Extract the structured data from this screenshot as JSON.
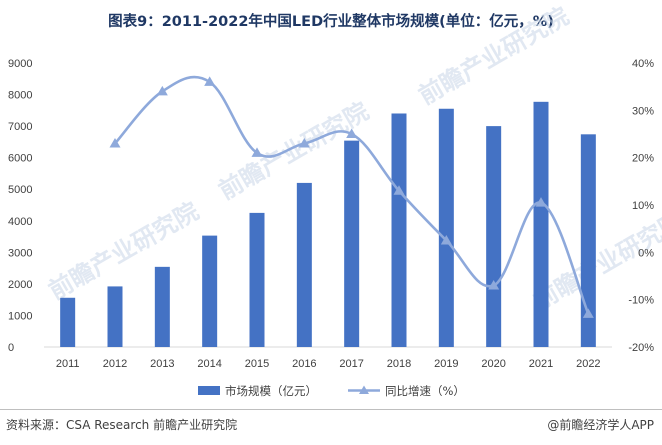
{
  "title": "图表9：2011-2022年中国LED行业整体市场规模(单位：亿元，%)",
  "source": "资料来源：CSA Research 前瞻产业研究院",
  "brand": "@前瞻经济学人APP",
  "watermark": "前瞻产业研究院",
  "colors": {
    "bar": "#4472c4",
    "line": "#8ea9db",
    "title": "#1f3864"
  },
  "chart_data": {
    "type": "bar+line",
    "categories": [
      "2011",
      "2012",
      "2013",
      "2014",
      "2015",
      "2016",
      "2017",
      "2018",
      "2019",
      "2020",
      "2021",
      "2022"
    ],
    "series": [
      {
        "name": "市场规模（亿元）",
        "type": "bar",
        "axis": "left",
        "values": [
          1560,
          1920,
          2540,
          3530,
          4250,
          5200,
          6540,
          7400,
          7550,
          7000,
          7770,
          6740
        ]
      },
      {
        "name": "同比增速（%）",
        "type": "line",
        "axis": "right",
        "values": [
          null,
          23,
          34,
          36,
          21,
          23,
          25,
          13,
          2.5,
          -7,
          10.5,
          -13
        ]
      }
    ],
    "left_axis": {
      "min": 0,
      "max": 9000,
      "step": 1000,
      "ticks": [
        "0",
        "1000",
        "2000",
        "3000",
        "4000",
        "5000",
        "6000",
        "7000",
        "8000",
        "9000"
      ]
    },
    "right_axis": {
      "min": -20,
      "max": 40,
      "step": 10,
      "ticks": [
        "-20%",
        "-10%",
        "0%",
        "10%",
        "20%",
        "30%",
        "40%"
      ]
    },
    "legend_position": "bottom-center"
  }
}
